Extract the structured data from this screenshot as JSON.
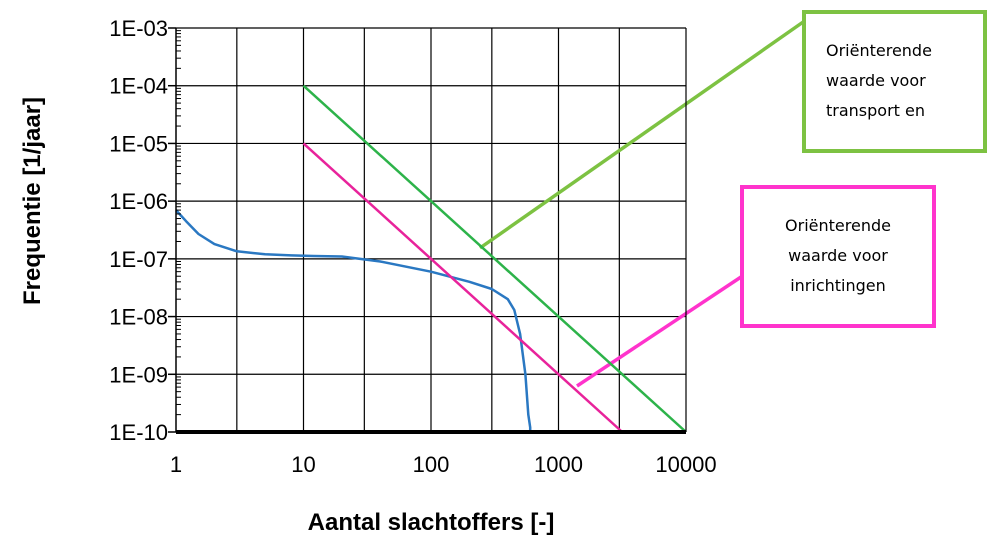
{
  "chart_data": {
    "type": "line",
    "xscale": "log",
    "yscale": "log",
    "xlim": [
      1,
      10000
    ],
    "ylim": [
      1e-10,
      0.001
    ],
    "xlabel": "Aantal slachtoffers [-]",
    "ylabel": "Frequentie [1/jaar]",
    "x_tick_labels": [
      "1",
      "10",
      "100",
      "1000",
      "10000"
    ],
    "y_tick_labels": [
      "1E-03",
      "1E-04",
      "1E-05",
      "1E-06",
      "1E-07",
      "1E-08",
      "1E-09",
      "1E-10"
    ],
    "grid": true,
    "series": [
      {
        "color": "#2a78c2",
        "x": [
          1,
          1.2,
          1.5,
          2,
          3,
          5,
          8,
          12,
          20,
          40,
          100,
          200,
          300,
          400,
          450,
          500,
          550,
          580,
          600,
          600
        ],
        "y": [
          7e-07,
          4.5e-07,
          2.7e-07,
          1.8e-07,
          1.35e-07,
          1.2e-07,
          1.15e-07,
          1.12e-07,
          1.1e-07,
          9e-08,
          6e-08,
          4e-08,
          3e-08,
          2e-08,
          1.3e-08,
          5e-09,
          1e-09,
          2e-10,
          1.2e-10,
          1e-10
        ]
      },
      {
        "color": "#2db34a",
        "x": [
          10,
          10000
        ],
        "y": [
          0.0001,
          1e-10
        ]
      },
      {
        "color": "#e8239b",
        "x": [
          10,
          3162
        ],
        "y": [
          1e-05,
          1e-10
        ]
      }
    ]
  },
  "annotations": {
    "transport": {
      "lines": [
        "Oriënterende",
        "waarde voor",
        "transport en"
      ],
      "color": "#7dc242"
    },
    "inrichtingen": {
      "lines": [
        "Oriënterende",
        "waarde voor",
        "inrichtingen"
      ],
      "color": "#ff33cc"
    }
  }
}
